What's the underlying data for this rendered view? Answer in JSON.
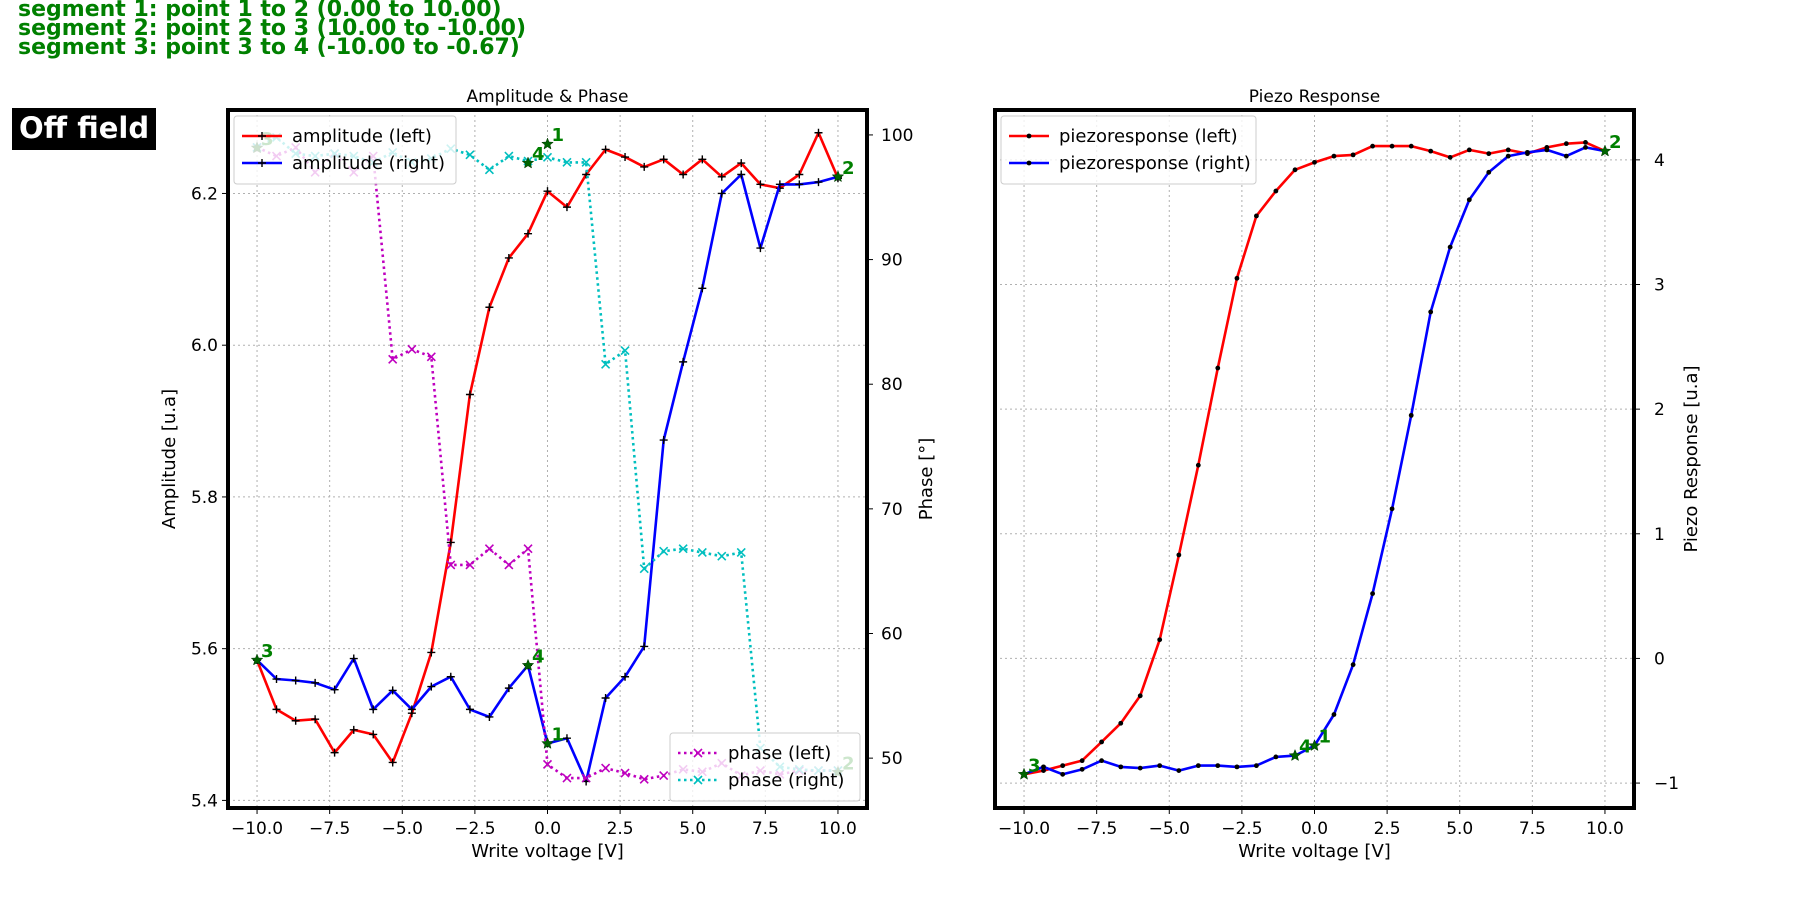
{
  "header": {
    "segments": [
      "segment 1: point 1 to 2 (0.00 to 10.00)",
      "segment 2: point 2 to 3 (10.00 to -10.00)",
      "segment 3: point 3 to 4 (-10.00 to -0.67)"
    ],
    "badge": "Off field"
  },
  "colors": {
    "segment_text": "#008000",
    "left_series": "#ff0000",
    "right_series": "#0000ff",
    "phase_left": "#bf00bf",
    "phase_right": "#00bfbf",
    "markers": "#000000",
    "point_label": "#008000"
  },
  "chart_data": [
    {
      "type": "line",
      "title": "Amplitude & Phase",
      "xlabel": "Write voltage [V]",
      "ylabel": "Amplitude [u.a]",
      "y2label": "Phase [°]",
      "xlim": [
        -11,
        11
      ],
      "ylim": [
        5.39,
        6.31
      ],
      "y2lim": [
        46,
        102
      ],
      "xticks": [
        -10,
        -7.5,
        -5,
        -2.5,
        0,
        2.5,
        5,
        7.5,
        10
      ],
      "xtick_labels": [
        "−10.0",
        "−7.5",
        "−5.0",
        "−2.5",
        "0.0",
        "2.5",
        "5.0",
        "7.5",
        "10.0"
      ],
      "yticks": [
        5.4,
        5.6,
        5.8,
        6.0,
        6.2
      ],
      "ytick_labels": [
        "5.4",
        "5.6",
        "5.8",
        "6.0",
        "6.2"
      ],
      "y2ticks": [
        50,
        60,
        70,
        80,
        90,
        100
      ],
      "y2tick_labels": [
        "50",
        "60",
        "70",
        "80",
        "90",
        "100"
      ],
      "grid": true,
      "legend_upper": {
        "placement": "top-left",
        "entries": [
          "amplitude (left)",
          "amplitude (right)"
        ]
      },
      "legend_lower": {
        "placement": "bottom-right",
        "entries": [
          "phase (left)",
          "phase (right)"
        ]
      },
      "series": [
        {
          "name": "amplitude (left)",
          "axis": "left",
          "color": "#ff0000",
          "style": "solid",
          "marker": "+",
          "x": [
            -10,
            -9.33,
            -8.67,
            -8,
            -7.33,
            -6.67,
            -6,
            -5.33,
            -4.67,
            -4,
            -3.33,
            -2.67,
            -2,
            -1.33,
            -0.67,
            0,
            0.67,
            1.33,
            2,
            2.67,
            3.33,
            4,
            4.67,
            5.33,
            6,
            6.67,
            7.33,
            8,
            8.67,
            9.33,
            10
          ],
          "y": [
            5.585,
            5.52,
            5.505,
            5.507,
            5.463,
            5.493,
            5.487,
            5.45,
            5.515,
            5.595,
            5.74,
            5.935,
            6.05,
            6.115,
            6.147,
            6.203,
            6.182,
            6.225,
            6.258,
            6.248,
            6.235,
            6.245,
            6.225,
            6.245,
            6.222,
            6.24,
            6.212,
            6.207,
            6.225,
            6.28,
            6.22
          ]
        },
        {
          "name": "amplitude (right)",
          "axis": "left",
          "color": "#0000ff",
          "style": "solid",
          "marker": "+",
          "x": [
            -10,
            -9.33,
            -8.67,
            -8,
            -7.33,
            -6.67,
            -6,
            -5.33,
            -4.67,
            -4,
            -3.33,
            -2.67,
            -2,
            -1.33,
            -0.67,
            0,
            0.67,
            1.33,
            2,
            2.67,
            3.33,
            4,
            4.67,
            5.33,
            6,
            6.67,
            7.33,
            8,
            8.67,
            9.33,
            10
          ],
          "y": [
            5.585,
            5.56,
            5.558,
            5.555,
            5.546,
            5.587,
            5.52,
            5.545,
            5.52,
            5.55,
            5.563,
            5.52,
            5.51,
            5.548,
            5.578,
            5.475,
            5.482,
            5.425,
            5.535,
            5.563,
            5.603,
            5.875,
            5.978,
            6.075,
            6.2,
            6.225,
            6.128,
            6.212,
            6.212,
            6.215,
            6.222
          ]
        },
        {
          "name": "phase (left)",
          "axis": "right",
          "color": "#bf00bf",
          "style": "dotted",
          "marker": "x",
          "x": [
            -10,
            -9.33,
            -8.67,
            -8,
            -7.33,
            -6.67,
            -6,
            -5.33,
            -4.67,
            -4,
            -3.33,
            -2.67,
            -2,
            -1.33,
            -0.67,
            0,
            0.67,
            1.33,
            2,
            2.67,
            3.33,
            4,
            4.67,
            5.33,
            6,
            6.67,
            7.33,
            8,
            8.67,
            9.33,
            10
          ],
          "y": [
            99,
            98.3,
            99,
            97,
            98.5,
            97,
            98.3,
            82,
            82.8,
            82.2,
            65.5,
            65.5,
            66.8,
            65.5,
            66.8,
            49.5,
            48.4,
            48.4,
            49.2,
            48.8,
            48.3,
            48.6,
            49.1,
            48.9,
            49.6,
            48.6,
            49.0,
            48.7,
            49.0,
            49.0,
            49.0
          ]
        },
        {
          "name": "phase (right)",
          "axis": "right",
          "color": "#00bfbf",
          "style": "dotted",
          "marker": "x",
          "x": [
            -10,
            -9.33,
            -8.67,
            -8,
            -7.33,
            -6.67,
            -6,
            -5.33,
            -4.67,
            -4,
            -3.33,
            -2.67,
            -2,
            -1.33,
            -0.67,
            0,
            0.67,
            1.33,
            2,
            2.67,
            3.33,
            4,
            4.67,
            5.33,
            6,
            6.67,
            7.33,
            8,
            8.67,
            9.33,
            10
          ],
          "y": [
            99,
            99.8,
            98.5,
            98.3,
            98.5,
            98.3,
            97.8,
            98.6,
            97.8,
            98.1,
            98.9,
            98.4,
            97.2,
            98.3,
            97.9,
            98.2,
            97.8,
            97.8,
            81.6,
            82.7,
            65.2,
            66.6,
            66.8,
            66.5,
            66.2,
            66.5,
            50.8,
            49.3,
            49.1,
            49.0,
            49.0
          ]
        }
      ],
      "point_labels": [
        {
          "text": "1",
          "x": 0,
          "y": 6.265
        },
        {
          "text": "2",
          "x": 10,
          "y": 6.222
        },
        {
          "text": "3",
          "x": -10,
          "y": 6.26
        },
        {
          "text": "4",
          "x": -0.67,
          "y": 6.24
        },
        {
          "text": "1",
          "x": 0,
          "y": 5.475
        },
        {
          "text": "2",
          "x": 10,
          "y": 5.437
        },
        {
          "text": "3",
          "x": -10,
          "y": 5.585
        },
        {
          "text": "4",
          "x": -0.67,
          "y": 5.578
        }
      ]
    },
    {
      "type": "line",
      "title": "Piezo Response",
      "xlabel": "Write voltage [V]",
      "ylabel": "Piezo Response [u.a]",
      "xlim": [
        -11,
        11
      ],
      "ylim": [
        -1.2,
        4.4
      ],
      "xticks": [
        -10,
        -7.5,
        -5,
        -2.5,
        0,
        2.5,
        5,
        7.5,
        10
      ],
      "xtick_labels": [
        "−10.0",
        "−7.5",
        "−5.0",
        "−2.5",
        "0.0",
        "2.5",
        "5.0",
        "7.5",
        "10.0"
      ],
      "yticks": [
        -1,
        0,
        1,
        2,
        3,
        4
      ],
      "ytick_labels": [
        "−1",
        "0",
        "1",
        "2",
        "3",
        "4"
      ],
      "grid": true,
      "legend": {
        "placement": "top-left",
        "entries": [
          "piezoresponse (left)",
          "piezoresponse (right)"
        ]
      },
      "series": [
        {
          "name": "piezoresponse (left)",
          "axis": "right",
          "color": "#ff0000",
          "style": "solid",
          "marker": ".",
          "x": [
            -10,
            -9.33,
            -8.67,
            -8,
            -7.33,
            -6.67,
            -6,
            -5.33,
            -4.67,
            -4,
            -3.33,
            -2.67,
            -2,
            -1.33,
            -0.67,
            0,
            0.67,
            1.33,
            2,
            2.67,
            3.33,
            4,
            4.67,
            5.33,
            6,
            6.67,
            7.33,
            8,
            8.67,
            9.33,
            10
          ],
          "y": [
            -0.93,
            -0.9,
            -0.86,
            -0.82,
            -0.67,
            -0.52,
            -0.3,
            0.15,
            0.83,
            1.55,
            2.33,
            3.05,
            3.55,
            3.75,
            3.92,
            3.98,
            4.03,
            4.04,
            4.11,
            4.11,
            4.11,
            4.07,
            4.02,
            4.08,
            4.05,
            4.08,
            4.05,
            4.1,
            4.13,
            4.14,
            4.07
          ]
        },
        {
          "name": "piezoresponse (right)",
          "axis": "right",
          "color": "#0000ff",
          "style": "solid",
          "marker": ".",
          "x": [
            -10,
            -9.33,
            -8.67,
            -8,
            -7.33,
            -6.67,
            -6,
            -5.33,
            -4.67,
            -4,
            -3.33,
            -2.67,
            -2,
            -1.33,
            -0.67,
            0,
            0.67,
            1.33,
            2,
            2.67,
            3.33,
            4,
            4.67,
            5.33,
            6,
            6.67,
            7.33,
            8,
            8.67,
            9.33,
            10
          ],
          "y": [
            -0.93,
            -0.87,
            -0.93,
            -0.89,
            -0.82,
            -0.87,
            -0.88,
            -0.86,
            -0.9,
            -0.86,
            -0.86,
            -0.87,
            -0.86,
            -0.79,
            -0.78,
            -0.7,
            -0.45,
            -0.05,
            0.52,
            1.2,
            1.95,
            2.78,
            3.3,
            3.68,
            3.9,
            4.03,
            4.06,
            4.08,
            4.03,
            4.1,
            4.07
          ]
        }
      ],
      "point_labels": [
        {
          "text": "1",
          "x": 0,
          "y": -0.7
        },
        {
          "text": "2",
          "x": 10,
          "y": 4.07
        },
        {
          "text": "3",
          "x": -10,
          "y": -0.93
        },
        {
          "text": "4",
          "x": -0.67,
          "y": -0.78
        }
      ]
    }
  ]
}
